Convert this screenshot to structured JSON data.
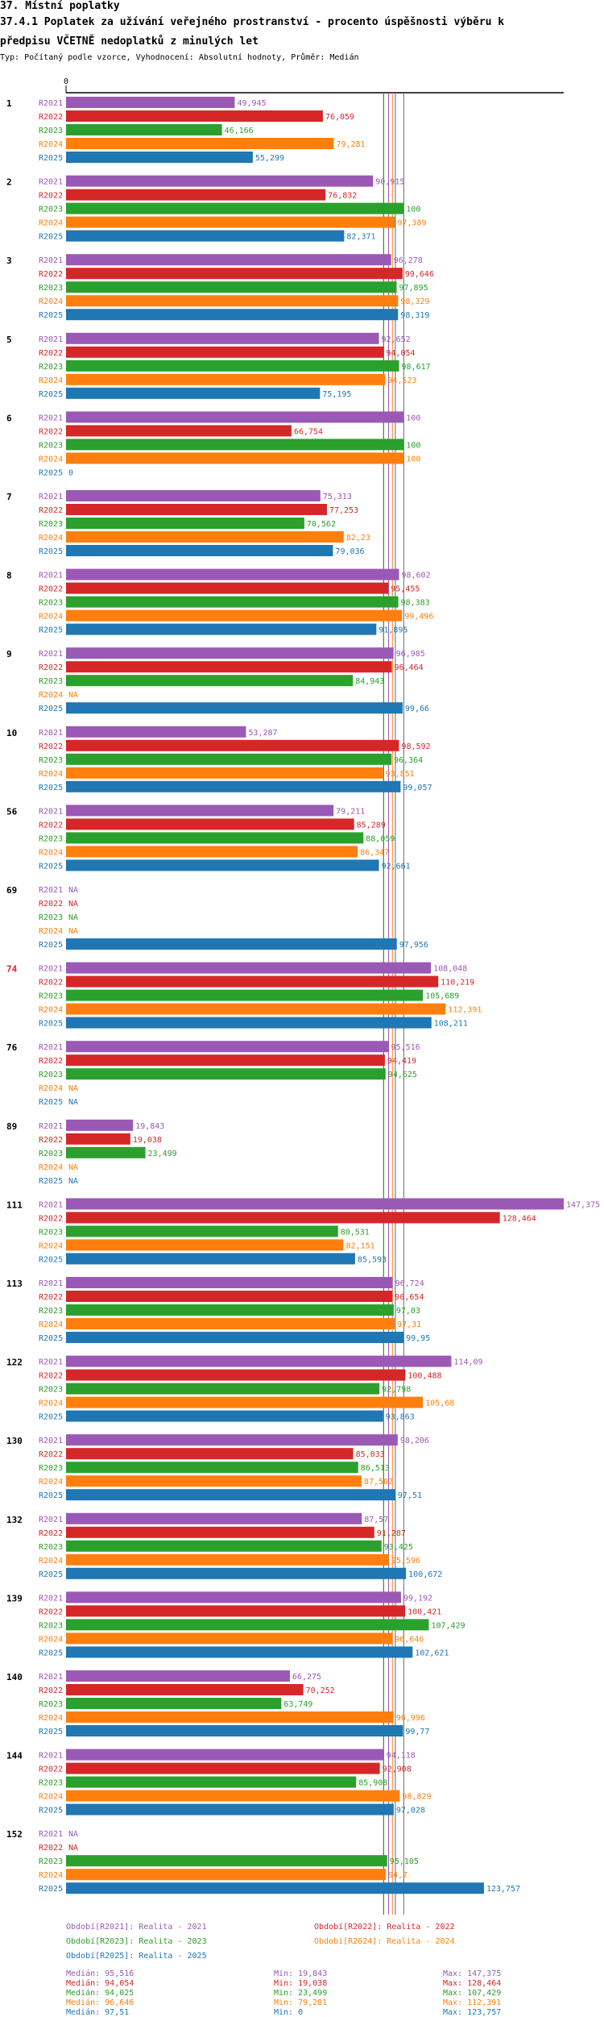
{
  "header": {
    "section": "37. Místní poplatky",
    "title_line1": "37.4.1 Poplatek za užívání veřejného prostranství - procento úspěšnosti výběru k",
    "title_line2": "předpisu VČETNĚ nedoplatků z minulých let",
    "subtitle": "Typ: Počítaný podle vzorce, Vyhodnocení: Absolutní hodnoty, Průměr: Medián"
  },
  "chart_data": {
    "type": "bar",
    "orientation": "horizontal",
    "axis_zero_label": "0",
    "na_label": "NA",
    "series": [
      {
        "key": "R2021",
        "name": "R2021",
        "color": "#9b59b6"
      },
      {
        "key": "R2022",
        "name": "R2022",
        "color": "#d62728"
      },
      {
        "key": "R2023",
        "name": "R2023",
        "color": "#2ca02c"
      },
      {
        "key": "R2024",
        "name": "R2024",
        "color": "#ff7f0e"
      },
      {
        "key": "R2025",
        "name": "R2025",
        "color": "#1f77b4"
      }
    ],
    "groups": [
      {
        "id": "1",
        "highlight": false,
        "values": [
          49.945,
          76.059,
          46.166,
          79.281,
          55.299
        ]
      },
      {
        "id": "2",
        "highlight": false,
        "values": [
          90.915,
          76.832,
          100,
          97.389,
          82.371
        ]
      },
      {
        "id": "3",
        "highlight": false,
        "values": [
          96.278,
          99.646,
          97.895,
          98.329,
          98.319
        ]
      },
      {
        "id": "5",
        "highlight": false,
        "values": [
          92.652,
          94.054,
          98.617,
          94.523,
          75.195
        ]
      },
      {
        "id": "6",
        "highlight": false,
        "values": [
          100,
          66.754,
          100,
          100,
          0
        ]
      },
      {
        "id": "7",
        "highlight": false,
        "values": [
          75.313,
          77.253,
          70.562,
          82.23,
          79.036
        ]
      },
      {
        "id": "8",
        "highlight": false,
        "values": [
          98.602,
          95.455,
          98.383,
          99.496,
          91.895
        ]
      },
      {
        "id": "9",
        "highlight": false,
        "values": [
          96.985,
          96.464,
          84.943,
          null,
          99.66
        ]
      },
      {
        "id": "10",
        "highlight": false,
        "values": [
          53.287,
          98.592,
          96.364,
          93.851,
          99.057
        ]
      },
      {
        "id": "56",
        "highlight": false,
        "values": [
          79.211,
          85.289,
          88.059,
          86.347,
          92.661
        ]
      },
      {
        "id": "69",
        "highlight": false,
        "values": [
          null,
          null,
          null,
          null,
          97.956
        ]
      },
      {
        "id": "74",
        "highlight": true,
        "values": [
          108.048,
          110.219,
          105.689,
          112.391,
          108.211
        ]
      },
      {
        "id": "76",
        "highlight": false,
        "values": [
          95.516,
          94.419,
          94.625,
          null,
          null
        ]
      },
      {
        "id": "89",
        "highlight": false,
        "values": [
          19.843,
          19.038,
          23.499,
          null,
          null
        ]
      },
      {
        "id": "111",
        "highlight": false,
        "values": [
          147.375,
          128.464,
          80.531,
          82.151,
          85.593
        ]
      },
      {
        "id": "113",
        "highlight": false,
        "values": [
          96.724,
          96.654,
          97.03,
          97.31,
          99.95
        ]
      },
      {
        "id": "122",
        "highlight": false,
        "values": [
          114.09,
          100.488,
          92.798,
          105.68,
          93.863
        ]
      },
      {
        "id": "130",
        "highlight": false,
        "values": [
          98.206,
          85.033,
          86.513,
          87.502,
          97.51
        ]
      },
      {
        "id": "132",
        "highlight": false,
        "values": [
          87.57,
          91.287,
          93.425,
          95.596,
          100.672
        ]
      },
      {
        "id": "139",
        "highlight": false,
        "values": [
          99.192,
          100.421,
          107.429,
          96.646,
          102.621
        ]
      },
      {
        "id": "140",
        "highlight": false,
        "values": [
          66.275,
          70.252,
          63.749,
          96.996,
          99.77
        ]
      },
      {
        "id": "144",
        "highlight": false,
        "values": [
          94.118,
          92.908,
          85.908,
          98.829,
          97.028
        ]
      },
      {
        "id": "152",
        "highlight": false,
        "values": [
          null,
          null,
          95.105,
          94.7,
          123.757
        ]
      }
    ],
    "value_labels": [
      [
        "49,945",
        "76,059",
        "46,166",
        "79,281",
        "55,299"
      ],
      [
        "90,915",
        "76,832",
        "100",
        "97,389",
        "82,371"
      ],
      [
        "96,278",
        "99,646",
        "97,895",
        "98,329",
        "98,319"
      ],
      [
        "92,652",
        "94,054",
        "98,617",
        "94,523",
        "75,195"
      ],
      [
        "100",
        "66,754",
        "100",
        "100",
        "0"
      ],
      [
        "75,313",
        "77,253",
        "70,562",
        "82,23",
        "79,036"
      ],
      [
        "98,602",
        "95,455",
        "98,383",
        "99,496",
        "91,895"
      ],
      [
        "96,985",
        "96,464",
        "84,943",
        "NA",
        "99,66"
      ],
      [
        "53,287",
        "98,592",
        "96,364",
        "93,851",
        "99,057"
      ],
      [
        "79,211",
        "85,289",
        "88,059",
        "86,347",
        "92,661"
      ],
      [
        "NA",
        "NA",
        "NA",
        "NA",
        "97,956"
      ],
      [
        "108,048",
        "110,219",
        "105,689",
        "112,391",
        "108,211"
      ],
      [
        "95,516",
        "94,419",
        "94,625",
        "NA",
        "NA"
      ],
      [
        "19,843",
        "19,038",
        "23,499",
        "NA",
        "NA"
      ],
      [
        "147,375",
        "128,464",
        "80,531",
        "82,151",
        "85,593"
      ],
      [
        "96,724",
        "96,654",
        "97,03",
        "97,31",
        "99,95"
      ],
      [
        "114,09",
        "100,488",
        "92,798",
        "105,68",
        "93,863"
      ],
      [
        "98,206",
        "85,033",
        "86,513",
        "87,502",
        "97,51"
      ],
      [
        "87,57",
        "91,287",
        "93,425",
        "95,596",
        "100,672"
      ],
      [
        "99,192",
        "100,421",
        "107,429",
        "96,646",
        "102,621"
      ],
      [
        "66,275",
        "70,252",
        "63,749",
        "96,996",
        "99,77"
      ],
      [
        "94,118",
        "92,908",
        "85,908",
        "98,829",
        "97,028"
      ],
      [
        "NA",
        "NA",
        "95,105",
        "94,7",
        "123,757"
      ]
    ],
    "medians": [
      95.516,
      94.054,
      94.025,
      96.646,
      97.51
    ],
    "xlim": [
      0,
      147.375
    ]
  },
  "legend": [
    {
      "label": "Období[R2021]: Realita - 2021",
      "color": "#9b59b6"
    },
    {
      "label": "Období[R2022]: Realita - 2022",
      "color": "#d62728"
    },
    {
      "label": "Období[R2023]: Realita - 2023",
      "color": "#2ca02c"
    },
    {
      "label": "Období[R2024]: Realita - 2024",
      "color": "#ff7f0e"
    },
    {
      "label": "Období[R2025]: Realita - 2025",
      "color": "#1f77b4"
    }
  ],
  "stats": [
    {
      "median": "Medián: 95,516",
      "min": "Min: 19,843",
      "max": "Max: 147,375",
      "color": "#9b59b6"
    },
    {
      "median": "Medián: 94,054",
      "min": "Min: 19,038",
      "max": "Max: 128,464",
      "color": "#d62728"
    },
    {
      "median": "Medián: 94,025",
      "min": "Min: 23,499",
      "max": "Max: 107,429",
      "color": "#2ca02c"
    },
    {
      "median": "Medián: 96,646",
      "min": "Min: 79,281",
      "max": "Max: 112,391",
      "color": "#ff7f0e"
    },
    {
      "median": "Medián: 97,51",
      "min": "Min: 0",
      "max": "Max: 123,757",
      "color": "#1f77b4"
    }
  ]
}
